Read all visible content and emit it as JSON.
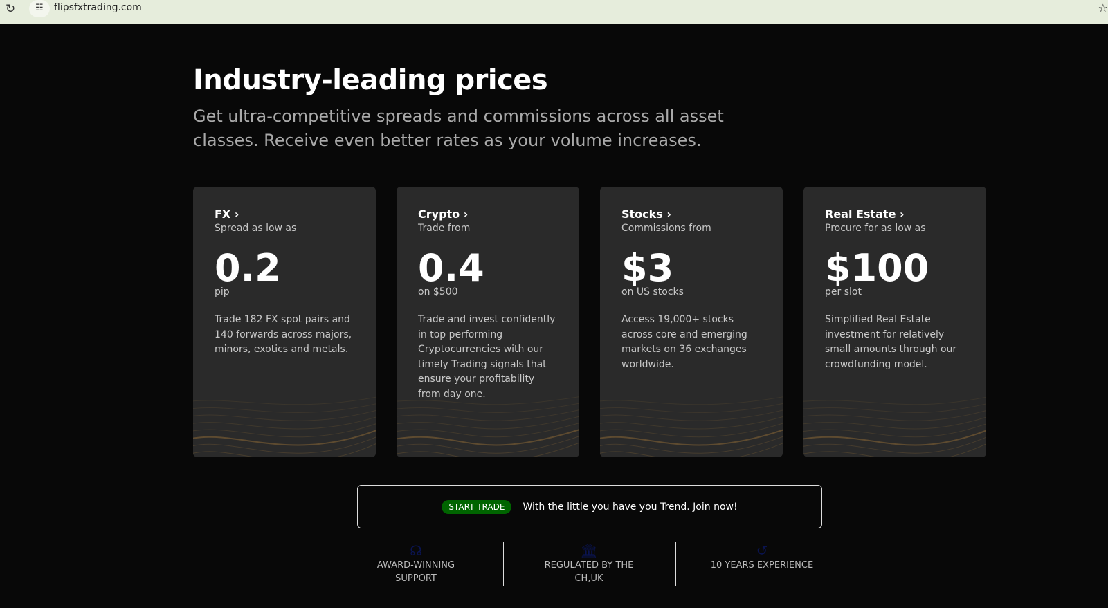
{
  "browser": {
    "url": "flipsfxtrading.com"
  },
  "hero": {
    "title": "Industry-leading prices",
    "subtitle": "Get ultra-competitive spreads and commissions across all asset classes. Receive even better rates as your volume increases."
  },
  "cards": [
    {
      "title": "FX",
      "caption": "Spread as low as",
      "value": "0.2",
      "unit": "pip",
      "description": "Trade 182 FX spot pairs and 140 forwards across majors, minors, exotics and metals."
    },
    {
      "title": "Crypto",
      "caption": "Trade from",
      "value": "0.4",
      "unit": "on $500",
      "description": "Trade and invest confidently in top performing Cryptocurrencies with our timely Trading signals that ensure your profitability from day one."
    },
    {
      "title": "Stocks",
      "caption": "Commissions from",
      "value": "$3",
      "unit": "on US stocks",
      "description": "Access 19,000+ stocks across core and emerging markets on 36 exchanges worldwide."
    },
    {
      "title": "Real Estate",
      "caption": "Procure for as low as",
      "value": "$100",
      "unit": "per slot",
      "description": "Simplified Real Estate investment for relatively small amounts through our crowdfunding model."
    }
  ],
  "cta": {
    "button": "START TRADE",
    "text": "With the little you have you Trend. Join now!",
    "button_color": "#006400"
  },
  "features": [
    {
      "icon": "headset-icon",
      "label": "AWARD-WINNING SUPPORT"
    },
    {
      "icon": "bank-icon",
      "label": "REGULATED BY THE CH,UK"
    },
    {
      "icon": "history-icon",
      "label": "10 YEARS EXPERIENCE"
    }
  ]
}
